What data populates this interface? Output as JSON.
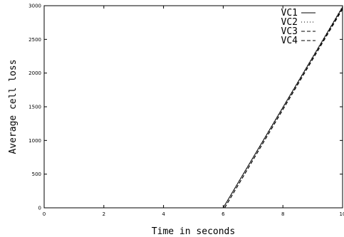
{
  "chart_data": {
    "type": "line",
    "title": "",
    "xlabel": "Time in seconds",
    "ylabel": "Average cell loss",
    "xlim": [
      0,
      10
    ],
    "ylim": [
      0,
      3000
    ],
    "x_ticks": [
      0,
      2,
      4,
      6,
      8,
      10
    ],
    "x_tick_labels": [
      "0",
      "2",
      "4",
      "6",
      "8",
      "10"
    ],
    "y_ticks": [
      0,
      500,
      1000,
      1500,
      2000,
      2500,
      3000
    ],
    "y_tick_labels": [
      "0",
      "500",
      "1000",
      "1500",
      "2000",
      "2500",
      "3000"
    ],
    "grid": false,
    "legend_position": "top-right",
    "series": [
      {
        "name": "VC1",
        "style": "solid",
        "x": [
          6.0,
          10.0
        ],
        "y": [
          0,
          2980
        ]
      },
      {
        "name": "VC2",
        "style": "dotted",
        "x": [
          6.0,
          10.0
        ],
        "y": [
          0,
          2990
        ]
      },
      {
        "name": "VC3",
        "style": "dashed",
        "x": [
          6.05,
          10.0
        ],
        "y": [
          0,
          2960
        ]
      },
      {
        "name": "VC4",
        "style": "dashed",
        "x": [
          6.05,
          10.0
        ],
        "y": [
          0,
          2950
        ]
      }
    ]
  }
}
